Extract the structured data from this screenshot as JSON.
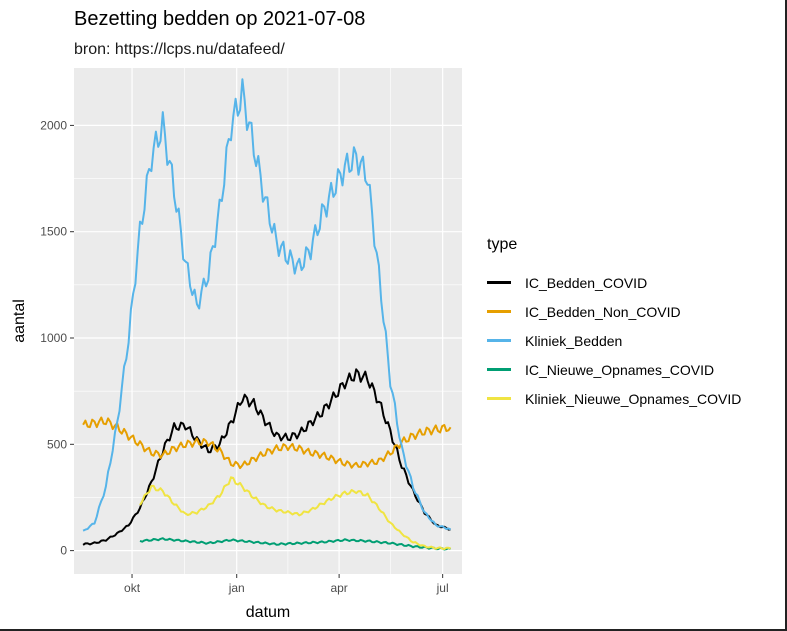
{
  "chart_data": {
    "type": "line",
    "title": "Bezetting bedden op 2021-07-08",
    "subtitle": "bron: https://lcps.nu/datafeed/",
    "xlabel": "datum",
    "ylabel": "aantal",
    "x_ticks": [
      {
        "label": "okt",
        "date": "2020-10-01"
      },
      {
        "label": "jan",
        "date": "2021-01-01"
      },
      {
        "label": "apr",
        "date": "2021-04-01"
      },
      {
        "label": "jul",
        "date": "2021-07-01"
      }
    ],
    "y_ticks": [
      0,
      500,
      1000,
      1500,
      2000
    ],
    "xlim": [
      "2020-08-11",
      "2021-07-18"
    ],
    "ylim": [
      -110,
      2270
    ],
    "grid": true,
    "legend_title": "type",
    "legend_position": "right",
    "series": [
      {
        "name": "IC_Bedden_COVID",
        "color": "#000000",
        "x": [
          "2020-08-19",
          "2020-08-29",
          "2020-09-08",
          "2020-09-18",
          "2020-09-28",
          "2020-10-08",
          "2020-10-18",
          "2020-10-28",
          "2020-11-07",
          "2020-11-17",
          "2020-11-27",
          "2020-12-07",
          "2020-12-17",
          "2020-12-27",
          "2021-01-06",
          "2021-01-16",
          "2021-01-26",
          "2021-02-05",
          "2021-02-15",
          "2021-02-25",
          "2021-03-07",
          "2021-03-17",
          "2021-03-27",
          "2021-04-06",
          "2021-04-16",
          "2021-04-26",
          "2021-05-06",
          "2021-05-16",
          "2021-05-26",
          "2021-06-05",
          "2021-06-15",
          "2021-06-25",
          "2021-07-08"
        ],
        "values": [
          30,
          35,
          50,
          80,
          120,
          200,
          320,
          470,
          580,
          590,
          520,
          470,
          500,
          600,
          720,
          690,
          610,
          540,
          530,
          550,
          600,
          650,
          720,
          790,
          830,
          810,
          700,
          560,
          400,
          280,
          180,
          120,
          100
        ]
      },
      {
        "name": "IC_Bedden_Non_COVID",
        "color": "#E69F00",
        "x": [
          "2020-08-19",
          "2020-08-29",
          "2020-09-08",
          "2020-09-18",
          "2020-09-28",
          "2020-10-08",
          "2020-10-18",
          "2020-10-28",
          "2020-11-07",
          "2020-11-17",
          "2020-11-27",
          "2020-12-07",
          "2020-12-17",
          "2020-12-27",
          "2021-01-06",
          "2021-01-16",
          "2021-01-26",
          "2021-02-05",
          "2021-02-15",
          "2021-02-25",
          "2021-03-07",
          "2021-03-17",
          "2021-03-27",
          "2021-04-06",
          "2021-04-16",
          "2021-04-26",
          "2021-05-06",
          "2021-05-16",
          "2021-05-26",
          "2021-06-05",
          "2021-06-15",
          "2021-06-25",
          "2021-07-08"
        ],
        "values": [
          590,
          600,
          610,
          580,
          540,
          500,
          460,
          450,
          480,
          500,
          510,
          510,
          470,
          410,
          400,
          430,
          460,
          480,
          490,
          480,
          460,
          450,
          430,
          410,
          400,
          410,
          420,
          460,
          510,
          540,
          560,
          570,
          580
        ]
      },
      {
        "name": "Kliniek_Bedden",
        "color": "#56B4E9",
        "x": [
          "2020-08-19",
          "2020-08-29",
          "2020-09-08",
          "2020-09-18",
          "2020-09-28",
          "2020-10-08",
          "2020-10-18",
          "2020-10-28",
          "2020-11-07",
          "2020-11-17",
          "2020-11-27",
          "2020-12-07",
          "2020-12-17",
          "2020-12-27",
          "2021-01-06",
          "2021-01-16",
          "2021-01-26",
          "2021-02-05",
          "2021-02-15",
          "2021-02-25",
          "2021-03-07",
          "2021-03-17",
          "2021-03-27",
          "2021-04-06",
          "2021-04-16",
          "2021-04-26",
          "2021-05-06",
          "2021-05-16",
          "2021-05-26",
          "2021-06-05",
          "2021-06-15",
          "2021-06-25",
          "2021-07-08"
        ],
        "values": [
          90,
          130,
          300,
          600,
          1000,
          1500,
          1850,
          2000,
          1700,
          1350,
          1150,
          1300,
          1600,
          2000,
          2150,
          1900,
          1650,
          1450,
          1380,
          1330,
          1420,
          1580,
          1700,
          1800,
          1850,
          1760,
          1300,
          800,
          480,
          300,
          180,
          120,
          100
        ]
      },
      {
        "name": "IC_Nieuwe_Opnames_COVID",
        "color": "#009E73",
        "x": [
          "2020-10-08",
          "2020-10-28",
          "2020-11-17",
          "2020-12-07",
          "2020-12-27",
          "2021-01-16",
          "2021-02-05",
          "2021-02-25",
          "2021-03-17",
          "2021-04-06",
          "2021-04-26",
          "2021-05-16",
          "2021-06-05",
          "2021-06-25",
          "2021-07-08"
        ],
        "values": [
          45,
          55,
          45,
          35,
          50,
          40,
          30,
          35,
          40,
          50,
          45,
          35,
          20,
          10,
          8
        ]
      },
      {
        "name": "Kliniek_Nieuwe_Opnames_COVID",
        "color": "#F0E442",
        "x": [
          "2020-10-08",
          "2020-10-18",
          "2020-10-28",
          "2020-11-07",
          "2020-11-17",
          "2020-11-27",
          "2020-12-07",
          "2020-12-17",
          "2020-12-27",
          "2021-01-06",
          "2021-01-16",
          "2021-01-26",
          "2021-02-05",
          "2021-02-15",
          "2021-02-25",
          "2021-03-07",
          "2021-03-17",
          "2021-03-27",
          "2021-04-06",
          "2021-04-16",
          "2021-04-26",
          "2021-05-06",
          "2021-05-16",
          "2021-05-26",
          "2021-06-05",
          "2021-06-15",
          "2021-06-25",
          "2021-07-08"
        ],
        "values": [
          220,
          300,
          280,
          220,
          170,
          180,
          210,
          260,
          340,
          300,
          250,
          210,
          190,
          180,
          170,
          190,
          220,
          250,
          270,
          280,
          260,
          200,
          130,
          80,
          40,
          20,
          12,
          10
        ]
      }
    ]
  }
}
